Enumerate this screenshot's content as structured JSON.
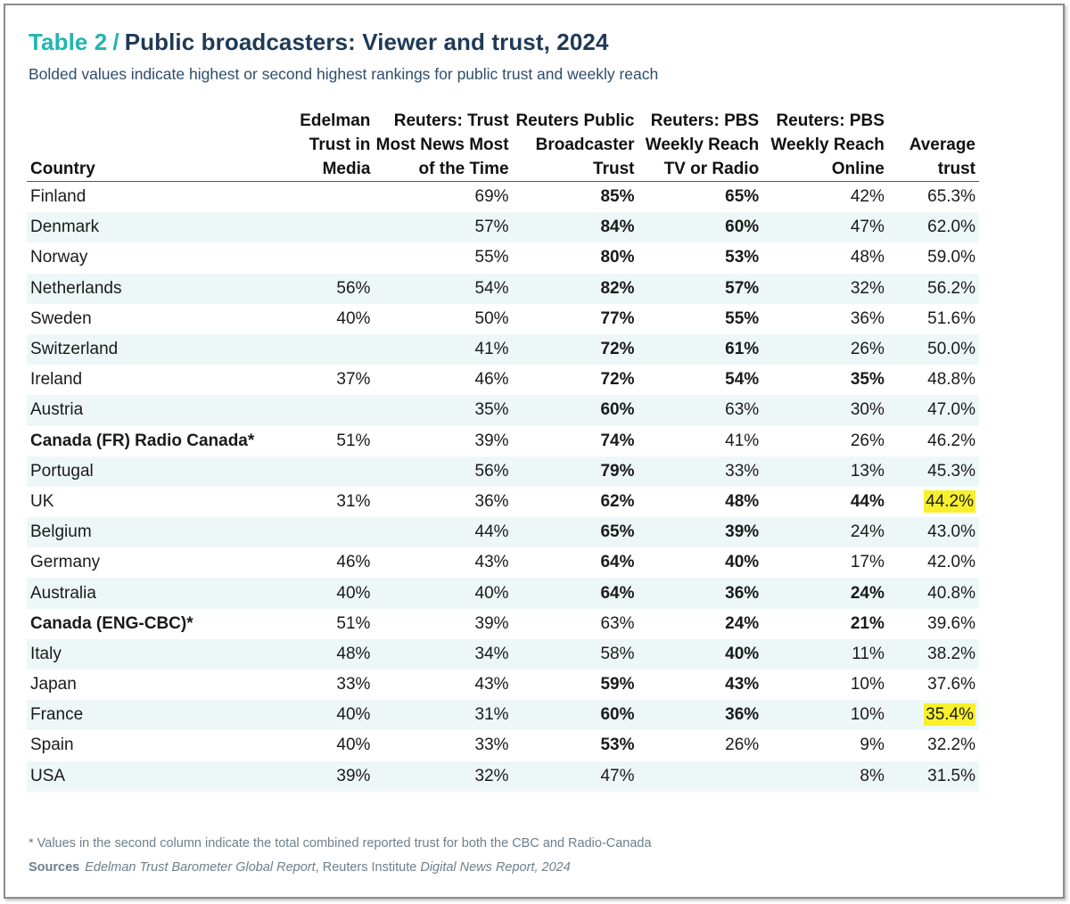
{
  "title": {
    "number": "Table 2",
    "separator": "/",
    "text": "Public broadcasters: Viewer and trust, 2024"
  },
  "subtitle": "Bolded values indicate highest or second highest rankings for public trust and weekly reach",
  "colors": {
    "accent": "#22b5b0",
    "heading": "#1f3a56",
    "highlight": "#f7f02a",
    "row_band": "#eef7f7"
  },
  "table": {
    "headers": [
      [
        "Country"
      ],
      [
        "Edelman",
        "Trust in Media"
      ],
      [
        "Reuters: Trust",
        "Most News Most",
        "of the Time"
      ],
      [
        "Reuters Public",
        "Broadcaster",
        "Trust"
      ],
      [
        "Reuters: PBS",
        "Weekly Reach",
        "TV or Radio"
      ],
      [
        "Reuters: PBS",
        "Weekly Reach",
        "Online"
      ],
      [
        "Average",
        "trust"
      ]
    ],
    "rows": [
      {
        "country": "Finland",
        "edelman": "",
        "reuters_trust": "69%",
        "pbs_trust": "85%",
        "reach_tv": "65%",
        "reach_online": "42%",
        "avg": "65.3%",
        "bold": [
          3,
          4
        ],
        "bold_country": false,
        "highlight": false
      },
      {
        "country": "Denmark",
        "edelman": "",
        "reuters_trust": "57%",
        "pbs_trust": "84%",
        "reach_tv": "60%",
        "reach_online": "47%",
        "avg": "62.0%",
        "bold": [
          3,
          4
        ],
        "bold_country": false,
        "highlight": false
      },
      {
        "country": "Norway",
        "edelman": "",
        "reuters_trust": "55%",
        "pbs_trust": "80%",
        "reach_tv": "53%",
        "reach_online": "48%",
        "avg": "59.0%",
        "bold": [
          3,
          4
        ],
        "bold_country": false,
        "highlight": false
      },
      {
        "country": "Netherlands",
        "edelman": "56%",
        "reuters_trust": "54%",
        "pbs_trust": "82%",
        "reach_tv": "57%",
        "reach_online": "32%",
        "avg": "56.2%",
        "bold": [
          3,
          4
        ],
        "bold_country": false,
        "highlight": false
      },
      {
        "country": "Sweden",
        "edelman": "40%",
        "reuters_trust": "50%",
        "pbs_trust": "77%",
        "reach_tv": "55%",
        "reach_online": "36%",
        "avg": "51.6%",
        "bold": [
          3,
          4
        ],
        "bold_country": false,
        "highlight": false
      },
      {
        "country": "Switzerland",
        "edelman": "",
        "reuters_trust": "41%",
        "pbs_trust": "72%",
        "reach_tv": "61%",
        "reach_online": "26%",
        "avg": "50.0%",
        "bold": [
          3,
          4
        ],
        "bold_country": false,
        "highlight": false
      },
      {
        "country": "Ireland",
        "edelman": "37%",
        "reuters_trust": "46%",
        "pbs_trust": "72%",
        "reach_tv": "54%",
        "reach_online": "35%",
        "avg": "48.8%",
        "bold": [
          3,
          4,
          5
        ],
        "bold_country": false,
        "highlight": false
      },
      {
        "country": "Austria",
        "edelman": "",
        "reuters_trust": "35%",
        "pbs_trust": "60%",
        "reach_tv": "63%",
        "reach_online": "30%",
        "avg": "47.0%",
        "bold": [
          3
        ],
        "bold_country": false,
        "highlight": false
      },
      {
        "country": "Canada (FR) Radio Canada*",
        "edelman": "51%",
        "reuters_trust": "39%",
        "pbs_trust": "74%",
        "reach_tv": "41%",
        "reach_online": "26%",
        "avg": "46.2%",
        "bold": [
          3
        ],
        "bold_country": true,
        "highlight": false
      },
      {
        "country": "Portugal",
        "edelman": "",
        "reuters_trust": "56%",
        "pbs_trust": "79%",
        "reach_tv": "33%",
        "reach_online": "13%",
        "avg": "45.3%",
        "bold": [
          3
        ],
        "bold_country": false,
        "highlight": false
      },
      {
        "country": "UK",
        "edelman": "31%",
        "reuters_trust": "36%",
        "pbs_trust": "62%",
        "reach_tv": "48%",
        "reach_online": "44%",
        "avg": "44.2%",
        "bold": [
          3,
          4,
          5
        ],
        "bold_country": false,
        "highlight": true
      },
      {
        "country": "Belgium",
        "edelman": "",
        "reuters_trust": "44%",
        "pbs_trust": "65%",
        "reach_tv": "39%",
        "reach_online": "24%",
        "avg": "43.0%",
        "bold": [
          3,
          4
        ],
        "bold_country": false,
        "highlight": false
      },
      {
        "country": "Germany",
        "edelman": "46%",
        "reuters_trust": "43%",
        "pbs_trust": "64%",
        "reach_tv": "40%",
        "reach_online": "17%",
        "avg": "42.0%",
        "bold": [
          3,
          4
        ],
        "bold_country": false,
        "highlight": false
      },
      {
        "country": "Australia",
        "edelman": "40%",
        "reuters_trust": "40%",
        "pbs_trust": "64%",
        "reach_tv": "36%",
        "reach_online": "24%",
        "avg": "40.8%",
        "bold": [
          3,
          4,
          5
        ],
        "bold_country": false,
        "highlight": false
      },
      {
        "country": "Canada (ENG-CBC)*",
        "edelman": "51%",
        "reuters_trust": "39%",
        "pbs_trust": "63%",
        "reach_tv": "24%",
        "reach_online": "21%",
        "avg": "39.6%",
        "bold": [
          4,
          5
        ],
        "bold_country": true,
        "highlight": false
      },
      {
        "country": "Italy",
        "edelman": "48%",
        "reuters_trust": "34%",
        "pbs_trust": "58%",
        "reach_tv": "40%",
        "reach_online": "11%",
        "avg": "38.2%",
        "bold": [
          4
        ],
        "bold_country": false,
        "highlight": false
      },
      {
        "country": "Japan",
        "edelman": "33%",
        "reuters_trust": "43%",
        "pbs_trust": "59%",
        "reach_tv": "43%",
        "reach_online": "10%",
        "avg": "37.6%",
        "bold": [
          3,
          4
        ],
        "bold_country": false,
        "highlight": false
      },
      {
        "country": "France",
        "edelman": "40%",
        "reuters_trust": "31%",
        "pbs_trust": "60%",
        "reach_tv": "36%",
        "reach_online": "10%",
        "avg": "35.4%",
        "bold": [
          3,
          4
        ],
        "bold_country": false,
        "highlight": true
      },
      {
        "country": "Spain",
        "edelman": "40%",
        "reuters_trust": "33%",
        "pbs_trust": "53%",
        "reach_tv": "26%",
        "reach_online": "9%",
        "avg": "32.2%",
        "bold": [
          3
        ],
        "bold_country": false,
        "highlight": false
      },
      {
        "country": "USA",
        "edelman": "39%",
        "reuters_trust": "32%",
        "pbs_trust": "47%",
        "reach_tv": "",
        "reach_online": "8%",
        "avg": "31.5%",
        "bold": [],
        "bold_country": false,
        "highlight": false
      }
    ]
  },
  "footnote": "*  Values in the second column indicate the total combined reported trust for both the CBC and Radio-Canada",
  "sources": {
    "label": "Sources",
    "part1": "Edelman Trust Barometer Global Report",
    "sep": ", Reuters Institute ",
    "part2": "Digital News Report, 2024"
  }
}
